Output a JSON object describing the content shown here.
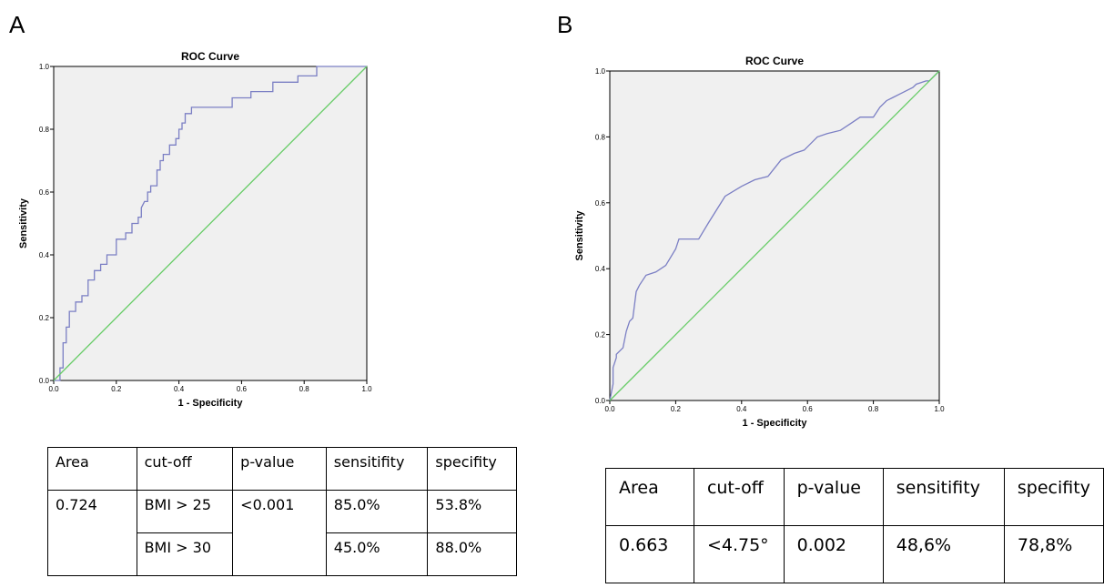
{
  "panels": [
    {
      "letter": "A",
      "table": {
        "headers": [
          "Area",
          "cut-off",
          "p-value",
          "sensitifity",
          "specifity"
        ],
        "rows": [
          [
            "0.724",
            "BMI > 25",
            "<0.001",
            "85.0%",
            "53.8%"
          ],
          [
            "",
            "BMI > 30",
            "",
            "45.0%",
            "88.0%"
          ]
        ]
      }
    },
    {
      "letter": "B",
      "table": {
        "headers": [
          "Area",
          "cut-off",
          "p-value",
          "sensitifity",
          "specifity"
        ],
        "rows": [
          [
            "0.663",
            "<4.75°",
            "0.002",
            "48,6%",
            "78,8%"
          ]
        ]
      }
    }
  ],
  "colors": {
    "curve": "#7b7fc4",
    "reference": "#66cc66",
    "plot_bg": "#f0f0f0"
  },
  "chart_data": [
    {
      "type": "line",
      "title": "ROC Curve",
      "xlabel": "1 - Specificity",
      "ylabel": "Sensitivity",
      "xlim": [
        0,
        1
      ],
      "ylim": [
        0,
        1
      ],
      "xticks": [
        "0.0",
        "0.2",
        "0.4",
        "0.6",
        "0.8",
        "1.0"
      ],
      "yticks": [
        "0.0",
        "0.2",
        "0.4",
        "0.6",
        "0.8",
        "1.0"
      ],
      "grid": false,
      "series": [
        {
          "role": "curve",
          "x": [
            0,
            0.02,
            0.02,
            0.03,
            0.03,
            0.04,
            0.04,
            0.05,
            0.05,
            0.07,
            0.07,
            0.09,
            0.09,
            0.11,
            0.11,
            0.13,
            0.13,
            0.15,
            0.15,
            0.17,
            0.17,
            0.2,
            0.2,
            0.23,
            0.23,
            0.25,
            0.25,
            0.27,
            0.27,
            0.28,
            0.28,
            0.29,
            0.3,
            0.3,
            0.31,
            0.31,
            0.33,
            0.33,
            0.34,
            0.34,
            0.35,
            0.35,
            0.37,
            0.37,
            0.39,
            0.39,
            0.4,
            0.4,
            0.41,
            0.41,
            0.42,
            0.42,
            0.44,
            0.44,
            0.48,
            0.48,
            0.57,
            0.57,
            0.63,
            0.63,
            0.7,
            0.7,
            0.78,
            0.78,
            0.84,
            0.84,
            1.0
          ],
          "y": [
            0,
            0,
            0.04,
            0.04,
            0.12,
            0.12,
            0.17,
            0.17,
            0.22,
            0.22,
            0.25,
            0.25,
            0.27,
            0.27,
            0.32,
            0.32,
            0.35,
            0.35,
            0.37,
            0.37,
            0.4,
            0.4,
            0.45,
            0.45,
            0.47,
            0.47,
            0.5,
            0.5,
            0.52,
            0.52,
            0.55,
            0.57,
            0.57,
            0.6,
            0.6,
            0.62,
            0.62,
            0.67,
            0.67,
            0.7,
            0.7,
            0.72,
            0.72,
            0.75,
            0.75,
            0.77,
            0.77,
            0.8,
            0.8,
            0.82,
            0.82,
            0.85,
            0.85,
            0.87,
            0.87,
            0.87,
            0.87,
            0.9,
            0.9,
            0.92,
            0.92,
            0.95,
            0.95,
            0.97,
            0.97,
            1.0,
            1.0
          ]
        },
        {
          "role": "reference",
          "x": [
            0,
            1
          ],
          "y": [
            0,
            1
          ]
        }
      ]
    },
    {
      "type": "line",
      "title": "ROC Curve",
      "xlabel": "1 - Specificity",
      "ylabel": "Sensitivity",
      "xlim": [
        0,
        1
      ],
      "ylim": [
        0,
        1
      ],
      "xticks": [
        "0.0",
        "0.2",
        "0.4",
        "0.6",
        "0.8",
        "1.0"
      ],
      "yticks": [
        "0.0",
        "0.2",
        "0.4",
        "0.6",
        "0.8",
        "1.0"
      ],
      "grid": false,
      "series": [
        {
          "role": "curve",
          "x": [
            0,
            0.01,
            0.01,
            0.02,
            0.02,
            0.04,
            0.05,
            0.06,
            0.07,
            0.08,
            0.09,
            0.11,
            0.14,
            0.17,
            0.2,
            0.21,
            0.24,
            0.27,
            0.3,
            0.35,
            0.4,
            0.44,
            0.48,
            0.52,
            0.56,
            0.59,
            0.63,
            0.66,
            0.7,
            0.73,
            0.76,
            0.8,
            0.82,
            0.84,
            0.86,
            0.88,
            0.9,
            0.92,
            0.93,
            0.96,
            0.97,
            0.99,
            1.0
          ],
          "y": [
            0,
            0.05,
            0.1,
            0.13,
            0.14,
            0.16,
            0.21,
            0.24,
            0.25,
            0.33,
            0.35,
            0.38,
            0.39,
            0.41,
            0.46,
            0.49,
            0.49,
            0.49,
            0.54,
            0.62,
            0.65,
            0.67,
            0.68,
            0.73,
            0.75,
            0.76,
            0.8,
            0.81,
            0.82,
            0.84,
            0.86,
            0.86,
            0.89,
            0.91,
            0.92,
            0.93,
            0.94,
            0.95,
            0.96,
            0.97,
            0.97,
            0.99,
            1.0
          ]
        },
        {
          "role": "reference",
          "x": [
            0,
            1
          ],
          "y": [
            0,
            1
          ]
        }
      ]
    }
  ]
}
